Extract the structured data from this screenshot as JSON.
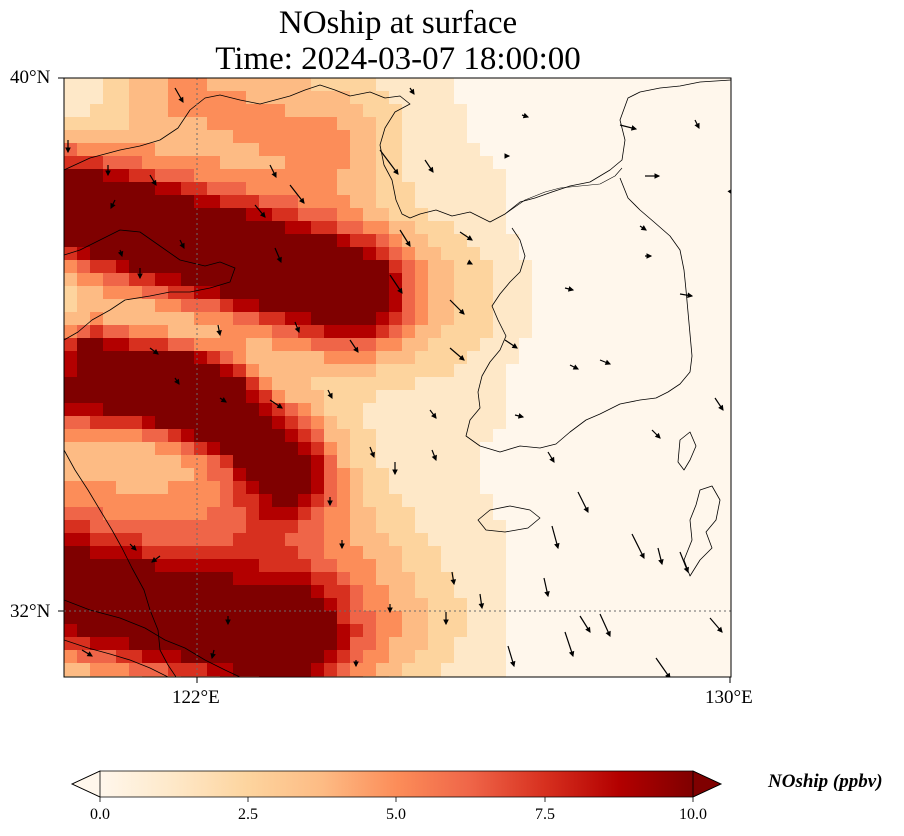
{
  "title": {
    "line1": "NOship at surface",
    "line2": "Time: 2024-03-07 18:00:00"
  },
  "map": {
    "variable": "NOship",
    "level": "surface",
    "time": "2024-03-07 18:00:00",
    "lon_range": [
      120.0,
      130.0
    ],
    "lat_range": [
      31.0,
      40.0
    ],
    "gridlines": {
      "lon": [
        122
      ],
      "lat": [
        32
      ]
    },
    "lon_tick_labels": [
      "122°E",
      "130°E"
    ],
    "lat_tick_labels": [
      "40°N",
      "32°N"
    ],
    "coastlines": "on",
    "wind_vectors": "on"
  },
  "colorbar": {
    "label": "NOship (ppbv)",
    "min": 0.0,
    "max": 10.0,
    "extend": "both",
    "tick_labels": [
      "0.0",
      "2.5",
      "5.0",
      "7.5",
      "10.0"
    ],
    "colors": [
      "#fff7ec",
      "#fee8c8",
      "#fdd49e",
      "#fdbb84",
      "#fc8d59",
      "#ef6548",
      "#d7301f",
      "#b30000",
      "#7f0000"
    ]
  }
}
